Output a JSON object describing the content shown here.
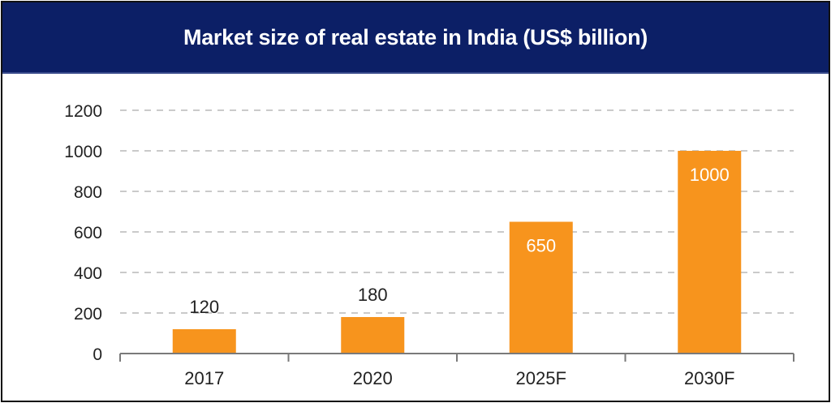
{
  "chart_data": {
    "type": "bar",
    "title": "Market size of real estate in India (US$ billion)",
    "categories": [
      "2017",
      "2020",
      "2025F",
      "2030F"
    ],
    "values": [
      120,
      180,
      650,
      1000
    ],
    "data_labels": [
      "120",
      "180",
      "650",
      "1000"
    ],
    "xlabel": "",
    "ylabel": "",
    "ylim": [
      0,
      1200
    ],
    "yticks": [
      0,
      200,
      400,
      600,
      800,
      1000,
      1200
    ],
    "ytick_labels": [
      "0",
      "200",
      "400",
      "600",
      "800",
      "1000",
      "1200"
    ],
    "grid": true,
    "grid_style": "dashed",
    "legend": "none",
    "bar_color": "#f7941d",
    "header_color": "#0c1f66"
  }
}
